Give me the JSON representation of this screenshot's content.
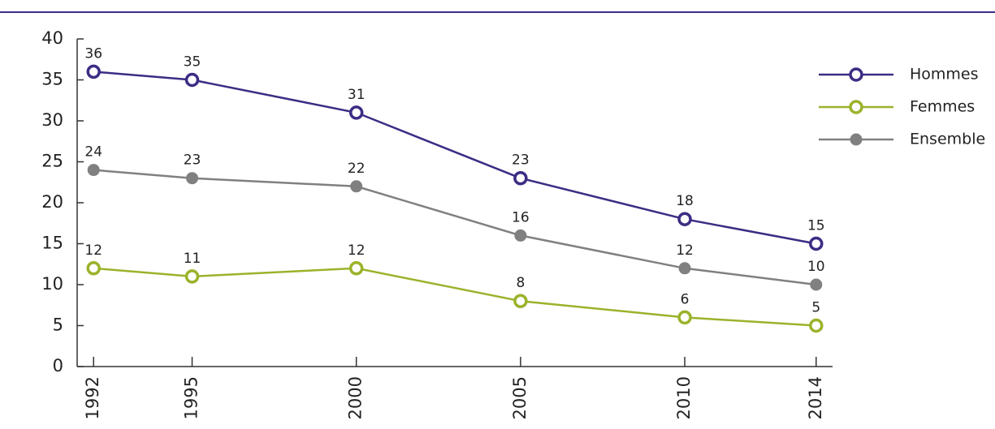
{
  "chart_data": {
    "type": "line",
    "x": [
      1992,
      1995,
      2000,
      2005,
      2010,
      2014
    ],
    "series": [
      {
        "name": "Hommes",
        "color": "#3d2c84",
        "filled": false,
        "values": [
          36,
          35,
          31,
          23,
          18,
          15
        ]
      },
      {
        "name": "Femmes",
        "color": "#9ab32b",
        "filled": false,
        "values": [
          12,
          11,
          12,
          8,
          6,
          5
        ]
      },
      {
        "name": "Ensemble",
        "color": "#808080",
        "filled": true,
        "values": [
          24,
          23,
          22,
          16,
          12,
          10
        ]
      }
    ],
    "xlim": [
      1991.5,
      2014.5
    ],
    "xticks": [
      1992,
      1995,
      2000,
      2005,
      2010,
      2014
    ],
    "ylim": [
      0,
      40
    ],
    "yticks": [
      0,
      5,
      10,
      15,
      20,
      25,
      30,
      35,
      40
    ],
    "legend": "top-right"
  }
}
